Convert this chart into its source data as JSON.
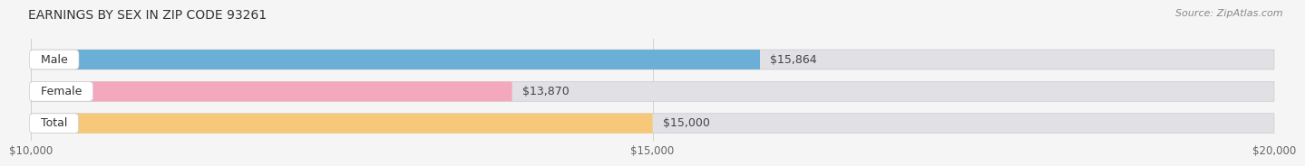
{
  "title": "EARNINGS BY SEX IN ZIP CODE 93261",
  "source": "Source: ZipAtlas.com",
  "categories": [
    "Male",
    "Female",
    "Total"
  ],
  "values": [
    15864,
    13870,
    15000
  ],
  "bar_colors": [
    "#6baed6",
    "#f4a8be",
    "#f8c87a"
  ],
  "bg_bar_color": "#e0e0e5",
  "value_labels": [
    "$15,864",
    "$13,870",
    "$15,000"
  ],
  "xmin": 10000,
  "xmax": 20000,
  "xticks": [
    10000,
    15000,
    20000
  ],
  "xtick_labels": [
    "$10,000",
    "$15,000",
    "$20,000"
  ],
  "bg_color": "#f5f5f5",
  "title_fontsize": 10,
  "source_fontsize": 8,
  "label_fontsize": 9,
  "tick_fontsize": 8.5
}
